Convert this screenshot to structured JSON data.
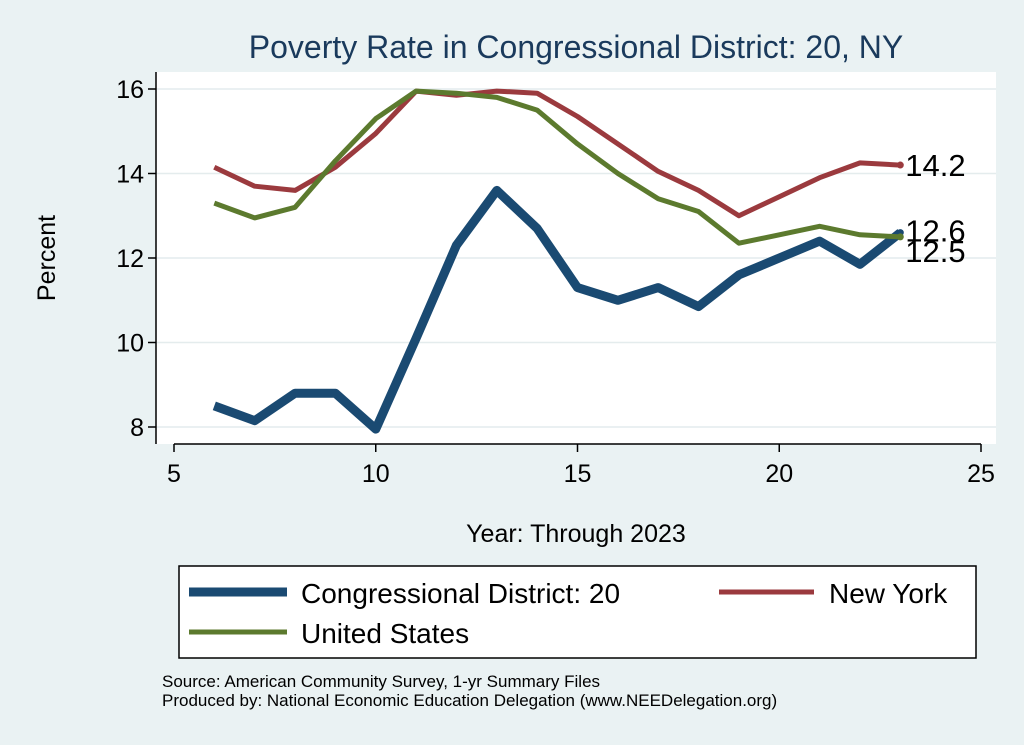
{
  "chart_data": {
    "type": "line",
    "title": "Poverty Rate in Congressional District:  20, NY",
    "xlabel": "Year: Through 2023",
    "ylabel": "Percent",
    "xlim": [
      5,
      25
    ],
    "ylim": [
      7.7,
      16.4
    ],
    "xticks": [
      5,
      10,
      15,
      20,
      25
    ],
    "yticks": [
      8,
      10,
      12,
      14,
      16
    ],
    "grid": true,
    "legend_position": "bottom",
    "series": [
      {
        "name": "Congressional District:  20",
        "color": "#1a4a72",
        "x": [
          6,
          7,
          8,
          9,
          10,
          11,
          12,
          13,
          14,
          15,
          16,
          17,
          18,
          19,
          20,
          21,
          22,
          23
        ],
        "y": [
          8.5,
          8.15,
          8.8,
          8.8,
          7.95,
          10.1,
          12.3,
          13.6,
          12.7,
          11.3,
          11.0,
          11.3,
          10.85,
          11.6,
          12.0,
          12.4,
          11.85,
          12.6
        ],
        "end_label": "12.6"
      },
      {
        "name": "New York",
        "color": "#9b3a3e",
        "x": [
          6,
          7,
          8,
          9,
          10,
          11,
          12,
          13,
          14,
          15,
          16,
          17,
          18,
          19,
          20,
          21,
          22,
          23
        ],
        "y": [
          14.15,
          13.7,
          13.6,
          14.15,
          14.95,
          15.95,
          15.85,
          15.95,
          15.9,
          15.35,
          14.7,
          14.05,
          13.6,
          13.0,
          13.45,
          13.9,
          14.25,
          14.2
        ],
        "end_label": "14.2"
      },
      {
        "name": "United States",
        "color": "#5c7a2e",
        "x": [
          6,
          7,
          8,
          9,
          10,
          11,
          12,
          13,
          14,
          15,
          16,
          17,
          18,
          19,
          20,
          21,
          22,
          23
        ],
        "y": [
          13.3,
          12.95,
          13.2,
          14.3,
          15.3,
          15.95,
          15.9,
          15.8,
          15.5,
          14.7,
          14.0,
          13.4,
          13.1,
          12.35,
          12.55,
          12.75,
          12.55,
          12.5
        ],
        "end_label": "12.5"
      }
    ],
    "source": "Source: American Community Survey, 1-yr Summary Files",
    "produced_by": "Produced by: National Economic Education Delegation (www.NEEDelegation.org)"
  }
}
